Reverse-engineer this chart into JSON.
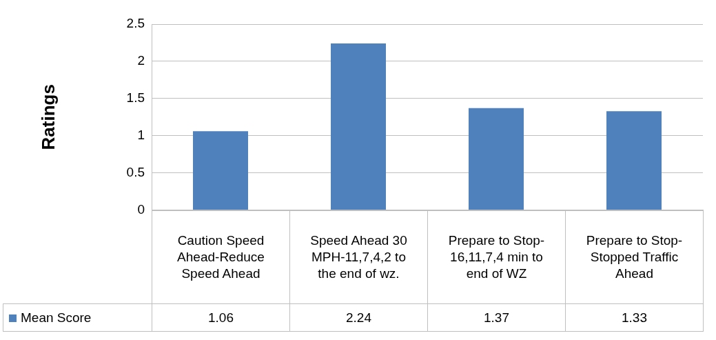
{
  "chart_data": {
    "type": "bar",
    "ylabel": "Ratings",
    "categories": [
      "Caution Speed Ahead-Reduce Speed Ahead",
      "Speed Ahead 30 MPH-11,7,4,2 to the end of wz.",
      "Prepare to Stop-16,11,7,4 min to end of WZ",
      "Prepare to Stop-Stopped Traffic Ahead"
    ],
    "series": [
      {
        "name": "Mean Score",
        "color": "#4f81bd",
        "values": [
          1.06,
          2.24,
          1.37,
          1.33
        ]
      }
    ],
    "ylim": [
      0,
      2.5
    ],
    "yticks": [
      0,
      0.5,
      1,
      1.5,
      2,
      2.5
    ],
    "grid": "y",
    "legend": "bottom",
    "data_labels": true
  }
}
